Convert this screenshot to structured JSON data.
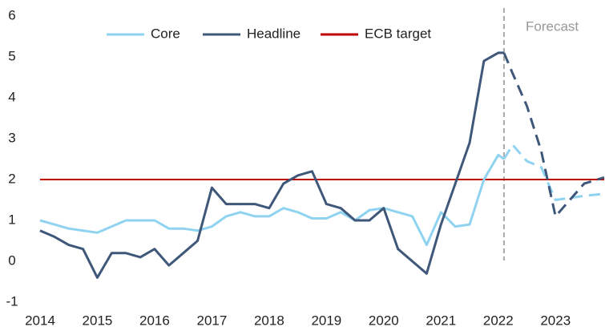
{
  "chart_data": {
    "type": "line",
    "x": [
      2014,
      2014.25,
      2014.5,
      2014.75,
      2015,
      2015.25,
      2015.5,
      2015.75,
      2016,
      2016.25,
      2016.5,
      2016.75,
      2017,
      2017.25,
      2017.5,
      2017.75,
      2018,
      2018.25,
      2018.5,
      2018.75,
      2019,
      2019.25,
      2019.5,
      2019.75,
      2020,
      2020.25,
      2020.5,
      2020.75,
      2021,
      2021.25,
      2021.5,
      2021.75,
      2022,
      2022.1,
      2022.25,
      2022.5,
      2022.75,
      2023,
      2023.25,
      2023.5,
      2023.85
    ],
    "series": [
      {
        "name": "Core",
        "color": "#8fd3f0",
        "values": [
          1.0,
          0.9,
          0.8,
          0.75,
          0.7,
          0.85,
          1.0,
          1.0,
          1.0,
          0.8,
          0.8,
          0.75,
          0.85,
          1.1,
          1.2,
          1.1,
          1.1,
          1.3,
          1.2,
          1.05,
          1.05,
          1.2,
          1.0,
          1.25,
          1.3,
          1.2,
          1.1,
          0.4,
          1.2,
          0.85,
          0.9,
          2.0,
          2.6,
          2.5,
          2.85,
          2.45,
          2.3,
          1.5,
          1.55,
          1.6,
          1.65
        ]
      },
      {
        "name": "Headline",
        "color": "#3f5779",
        "values": [
          0.75,
          0.6,
          0.4,
          0.3,
          -0.4,
          0.2,
          0.2,
          0.1,
          0.3,
          -0.1,
          0.2,
          0.5,
          1.8,
          1.4,
          1.4,
          1.4,
          1.3,
          1.9,
          2.1,
          2.2,
          1.4,
          1.3,
          1.0,
          1.0,
          1.3,
          0.3,
          0.0,
          -0.3,
          0.9,
          1.9,
          2.9,
          4.9,
          5.1,
          5.1,
          4.6,
          3.8,
          2.7,
          1.1,
          1.5,
          1.9,
          2.05
        ]
      }
    ],
    "reference_lines": [
      {
        "name": "ECB target",
        "value": 2,
        "color": "#c00000"
      }
    ],
    "forecast": {
      "label": "Forecast",
      "x": 2022.1
    },
    "xlim": [
      2014,
      2023.85
    ],
    "xticks": [
      2014,
      2015,
      2016,
      2017,
      2018,
      2019,
      2020,
      2021,
      2022,
      2023
    ],
    "ylim": [
      -1,
      6
    ],
    "yticks": [
      -1,
      0,
      1,
      2,
      3,
      4,
      5,
      6
    ],
    "grid": false
  }
}
